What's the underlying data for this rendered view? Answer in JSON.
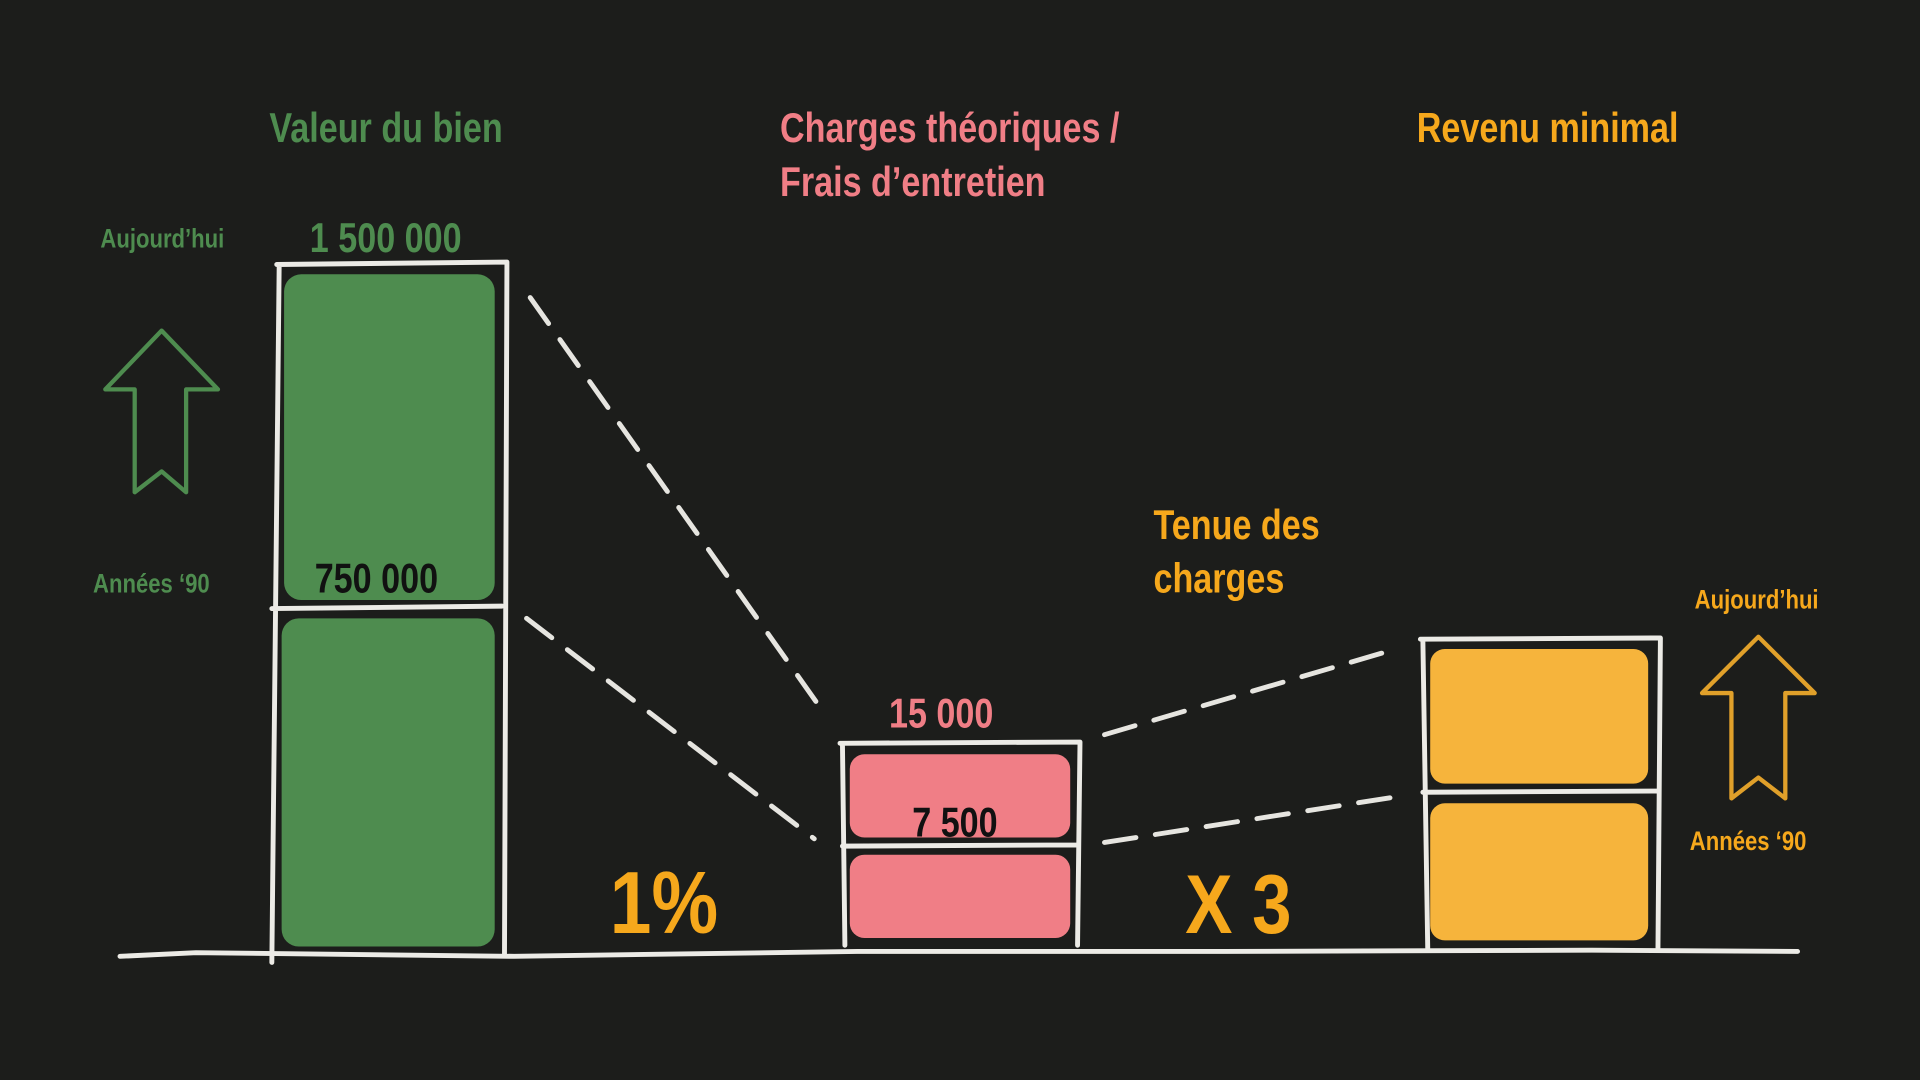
{
  "colors": {
    "background": "#1c1d1b",
    "green": "#4e8c4f",
    "pink": "#f07e86",
    "orange": "#f6a81c",
    "chalk": "#ecebe6"
  },
  "property_value": {
    "title": "Valeur du bien",
    "label_today": "Aujourd’hui",
    "label_90s": "Années ‘90",
    "value_today": "1 500 000",
    "value_90s": "750 000",
    "trend_icon": "arrow-up-icon"
  },
  "charges": {
    "title_line1": "Charges théoriques /",
    "title_line2": "Frais d’entretien",
    "value_today": "15 000",
    "value_90s": "7 500",
    "rate": "1%"
  },
  "income": {
    "title": "Revenu minimal",
    "label_today": "Aujourd’hui",
    "label_90s": "Années ‘90",
    "note_line1": "Tenue des",
    "note_line2": "charges",
    "multiplier": "X 3",
    "trend_icon": "arrow-up-icon"
  }
}
